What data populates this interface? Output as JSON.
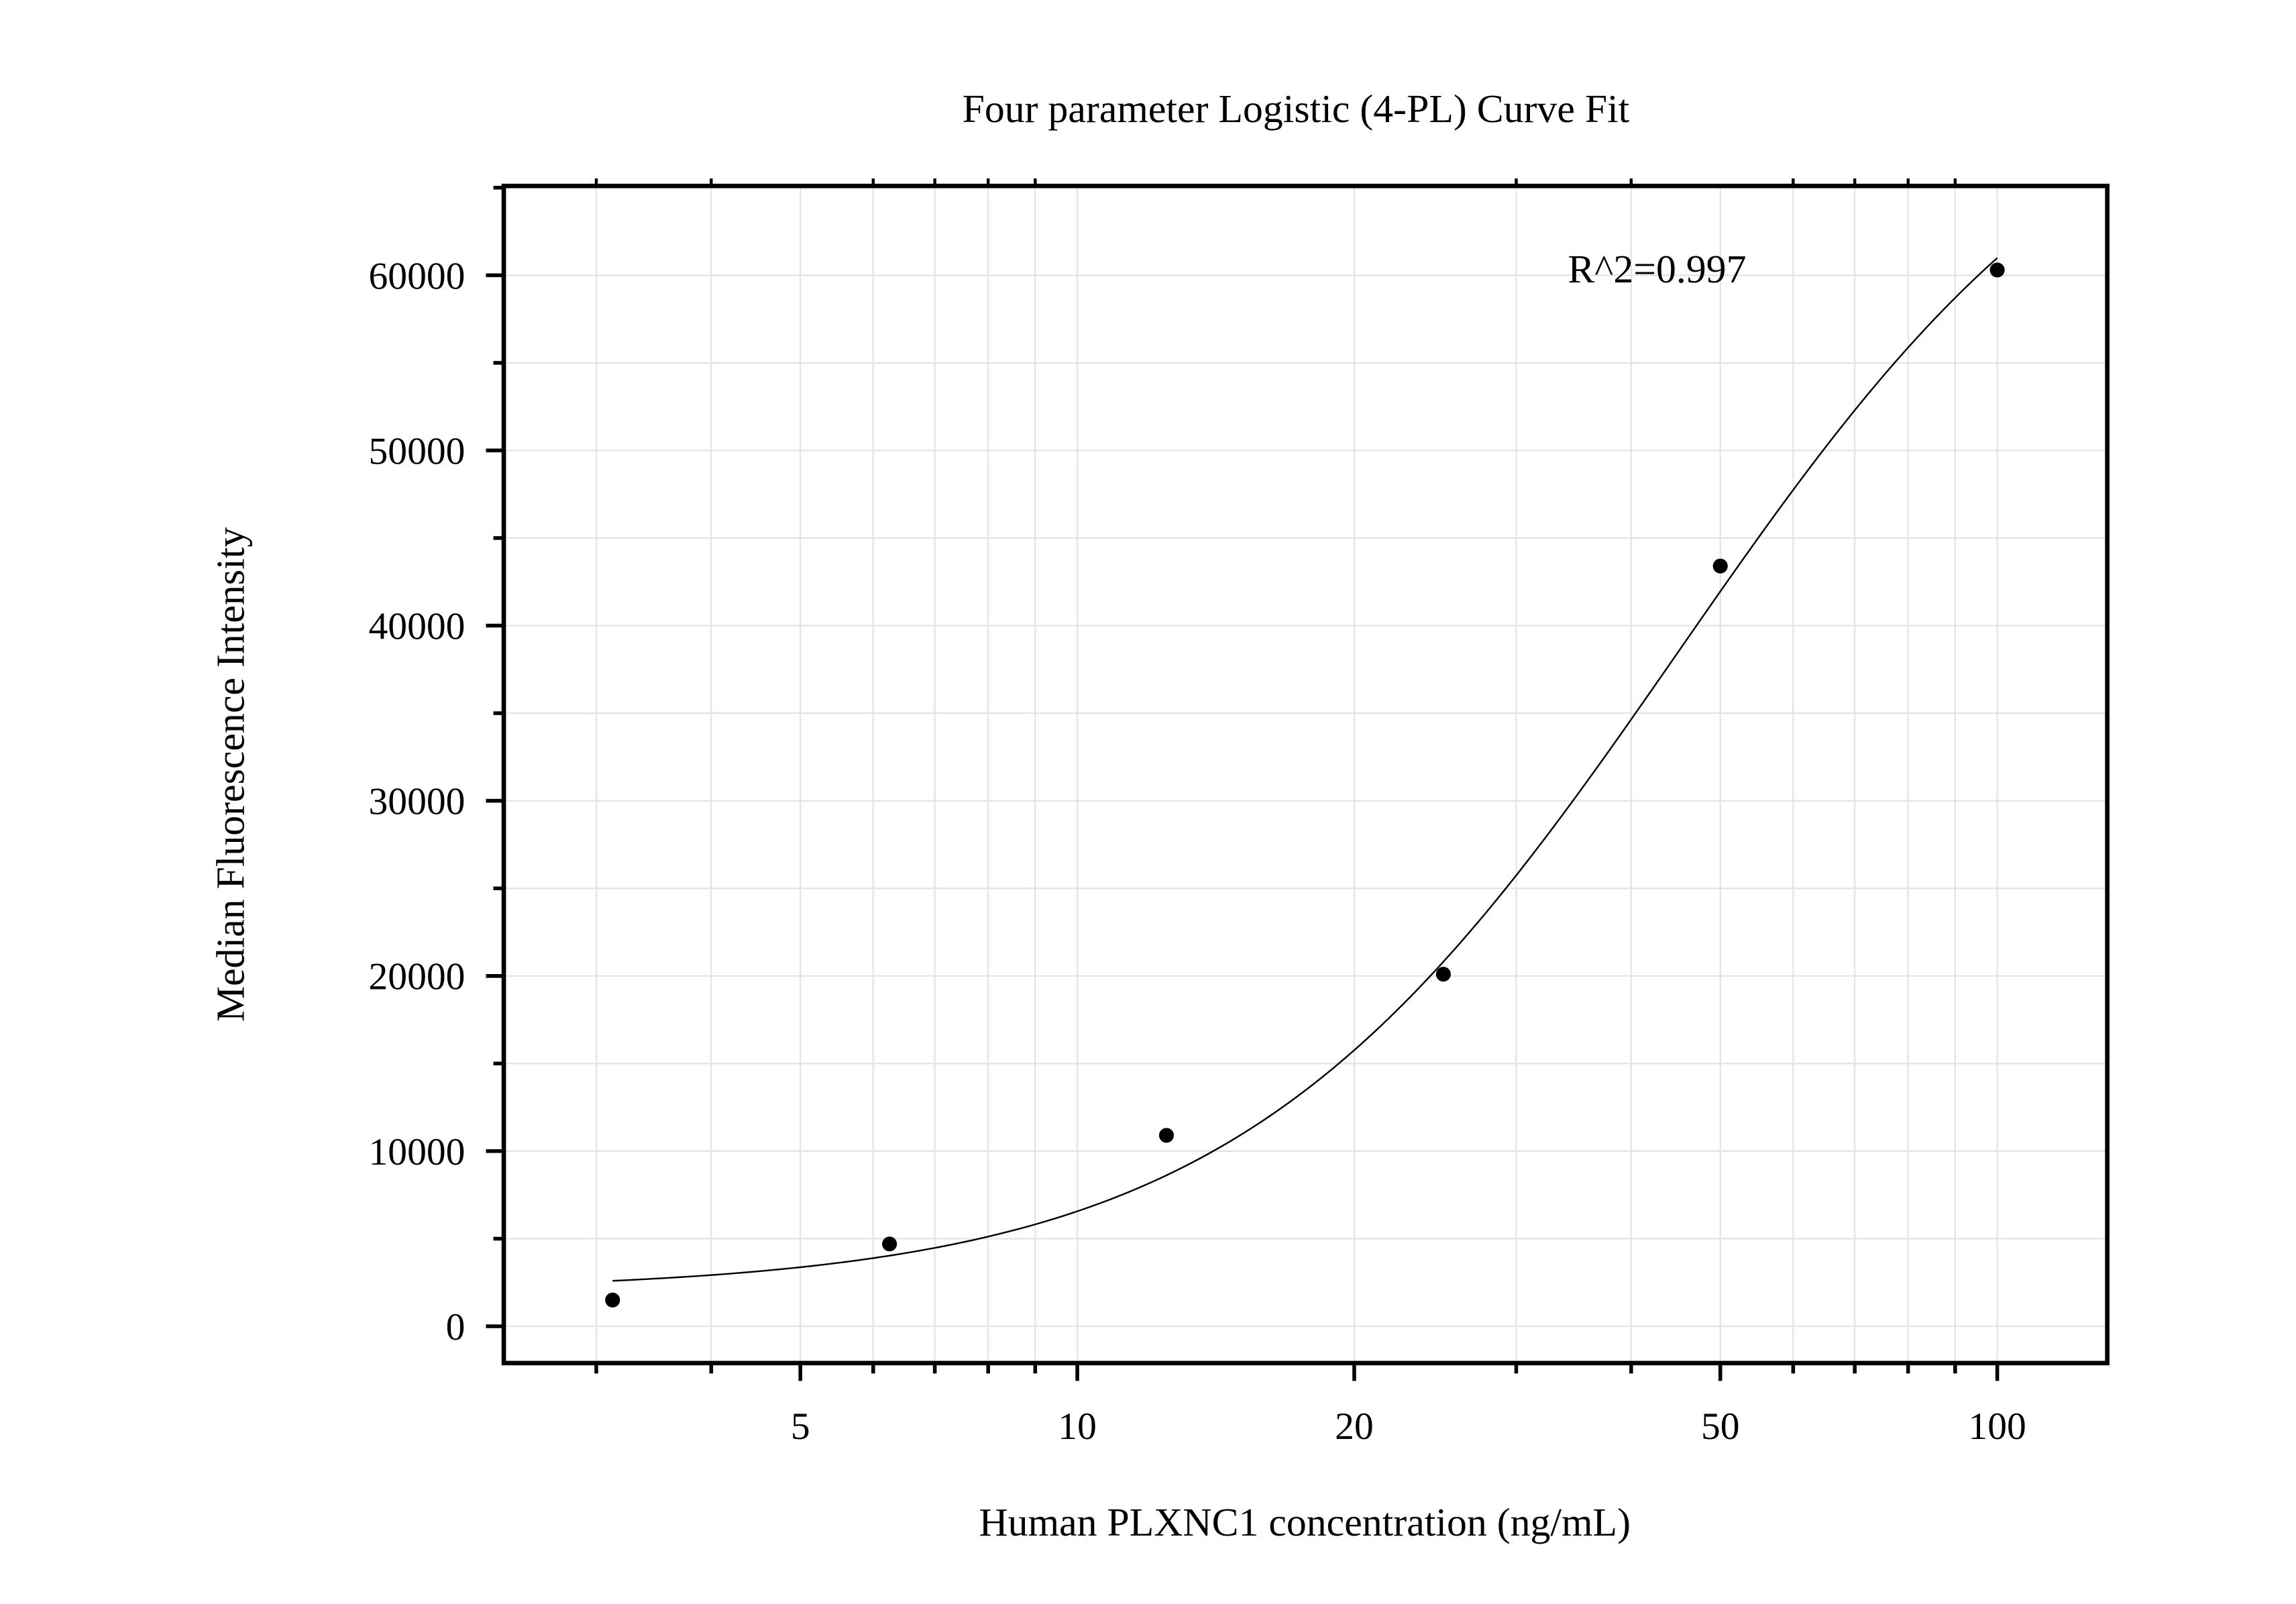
{
  "chart_data": {
    "type": "scatter",
    "title": "Four parameter Logistic (4-PL) Curve Fit",
    "xlabel": "Human PLXNC1 concentration (ng/mL)",
    "ylabel": "Median Fluorescence Intensity",
    "x_scale": "log",
    "xlim": [
      2.38,
      131.7
    ],
    "ylim": [
      -2100,
      65100
    ],
    "x_ticks": [
      5,
      10,
      20,
      50,
      100
    ],
    "x_tick_labels": [
      "5",
      "10",
      "20",
      "50",
      "100"
    ],
    "y_ticks": [
      0,
      10000,
      20000,
      30000,
      40000,
      50000,
      60000
    ],
    "y_tick_labels": [
      "0",
      "10000",
      "20000",
      "30000",
      "40000",
      "50000",
      "60000"
    ],
    "grid": true,
    "annotation": "R^2=0.997",
    "series": [
      {
        "x": [
          3.125,
          6.25,
          12.5,
          25,
          50,
          100
        ],
        "y": [
          1500,
          4700,
          10900,
          20100,
          43400,
          60300
        ],
        "marker": "circle",
        "color": "#000000"
      }
    ],
    "fit_curve": {
      "type": "4-PL",
      "x_range": [
        3.125,
        100
      ],
      "color": "#000000"
    }
  }
}
